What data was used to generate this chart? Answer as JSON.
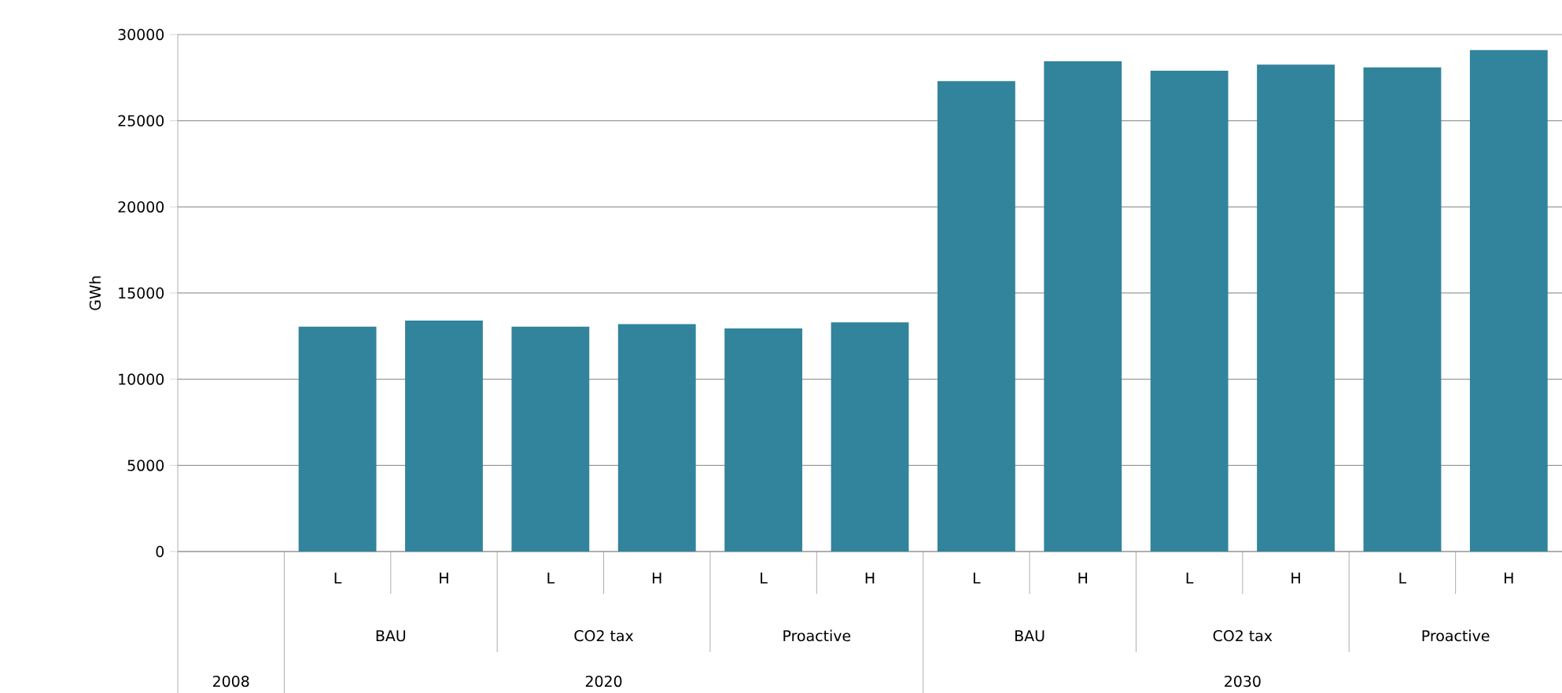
{
  "chart_data": {
    "type": "bar",
    "ylabel": "GWh",
    "categories": [
      null,
      "L",
      "H",
      "L",
      "H",
      "L",
      "H",
      "L",
      "H",
      "L",
      "H",
      "L",
      "H"
    ],
    "values": [
      null,
      13050,
      13400,
      13050,
      13200,
      12950,
      13300,
      27300,
      28450,
      27900,
      28250,
      28100,
      29100
    ],
    "color": "#31849b",
    "ylim": [
      0,
      30000
    ],
    "yticks": [
      0,
      5000,
      10000,
      15000,
      20000,
      25000,
      30000
    ],
    "grid": "y",
    "annotations": [
      "BAU",
      "CO2 tax",
      "Proactive",
      "BAU",
      "CO2 tax",
      "Proactive",
      "2008",
      "2020",
      "2030"
    ]
  }
}
